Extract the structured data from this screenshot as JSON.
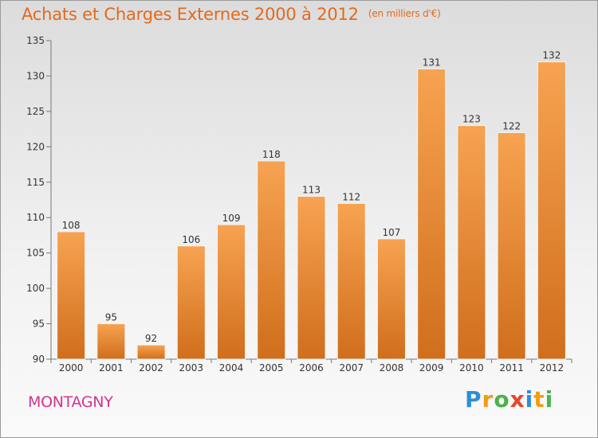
{
  "header": {
    "title": "Achats et Charges Externes 2000 à 2012",
    "unit": "(en milliers d'€)"
  },
  "footer": {
    "town": "MONTAGNY",
    "logo_letters": [
      "P",
      "r",
      "o",
      "x",
      "i",
      "t",
      "i"
    ]
  },
  "colors": {
    "bar_top": "#f7a351",
    "bar_bottom": "#d06e1c",
    "title": "#e26a1d",
    "town": "#d4348c"
  },
  "chart_data": {
    "type": "bar",
    "title": "Achats et Charges Externes 2000 à 2012",
    "subtitle": "(en milliers d'€)",
    "categories": [
      "2000",
      "2001",
      "2002",
      "2003",
      "2004",
      "2005",
      "2006",
      "2007",
      "2008",
      "2009",
      "2010",
      "2011",
      "2012"
    ],
    "values": [
      108,
      95,
      92,
      106,
      109,
      118,
      113,
      112,
      107,
      131,
      123,
      122,
      132
    ],
    "ylim": [
      90,
      135
    ],
    "yticks": [
      90,
      95,
      100,
      105,
      110,
      115,
      120,
      125,
      130,
      135
    ],
    "grid": false,
    "legend": "none"
  }
}
